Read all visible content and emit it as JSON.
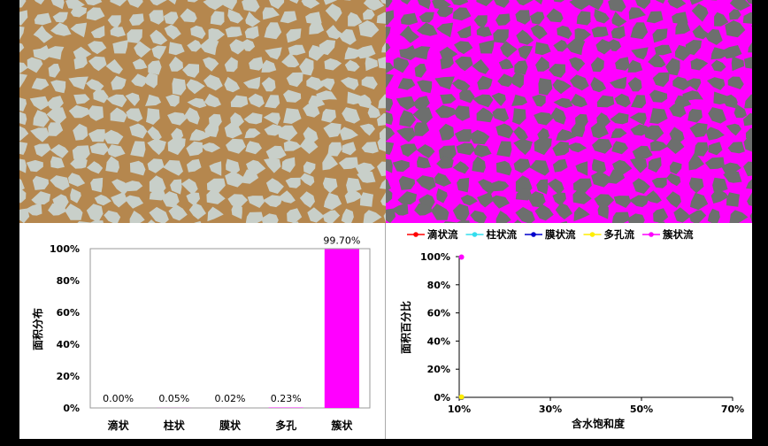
{
  "chart_data": [
    {
      "type": "bar",
      "categories": [
        "滴状",
        "柱状",
        "膜状",
        "多孔",
        "簇状"
      ],
      "values": [
        0.0,
        0.05,
        0.02,
        0.23,
        99.7
      ],
      "data_labels": [
        "0.00%",
        "0.05%",
        "0.02%",
        "0.23%",
        "99.70%"
      ],
      "ylabel": "面积分布",
      "ylim": [
        0,
        100
      ],
      "yticks": [
        "0%",
        "20%",
        "40%",
        "60%",
        "80%",
        "100%"
      ],
      "bar_color": "#ff00ff"
    },
    {
      "type": "scatter",
      "xlabel": "含水饱和度",
      "ylabel": "面积百分比",
      "xlim": [
        10,
        70
      ],
      "ylim": [
        0,
        100
      ],
      "xticks": [
        "10%",
        "30%",
        "50%",
        "70%"
      ],
      "yticks": [
        "0%",
        "20%",
        "40%",
        "60%",
        "80%",
        "100%"
      ],
      "legend_position": "top",
      "series": [
        {
          "name": "滴状流",
          "color": "#ff0000",
          "points": [
            [
              10.5,
              0
            ]
          ]
        },
        {
          "name": "柱状流",
          "color": "#33ddee",
          "points": [
            [
              10.5,
              0
            ]
          ]
        },
        {
          "name": "膜状流",
          "color": "#0000cc",
          "points": [
            [
              10.5,
              0
            ]
          ]
        },
        {
          "name": "多孔流",
          "color": "#ffee00",
          "points": [
            [
              10.5,
              0.23
            ]
          ]
        },
        {
          "name": "簇状流",
          "color": "#ff00ff",
          "points": [
            [
              10.5,
              99.7
            ]
          ]
        }
      ]
    }
  ],
  "colors": {
    "grain": "#c8cfc9",
    "pore_brown": "#b5874e",
    "segmented_bg": "#6d6f6e",
    "segmented_magenta": "#ff00ff"
  }
}
